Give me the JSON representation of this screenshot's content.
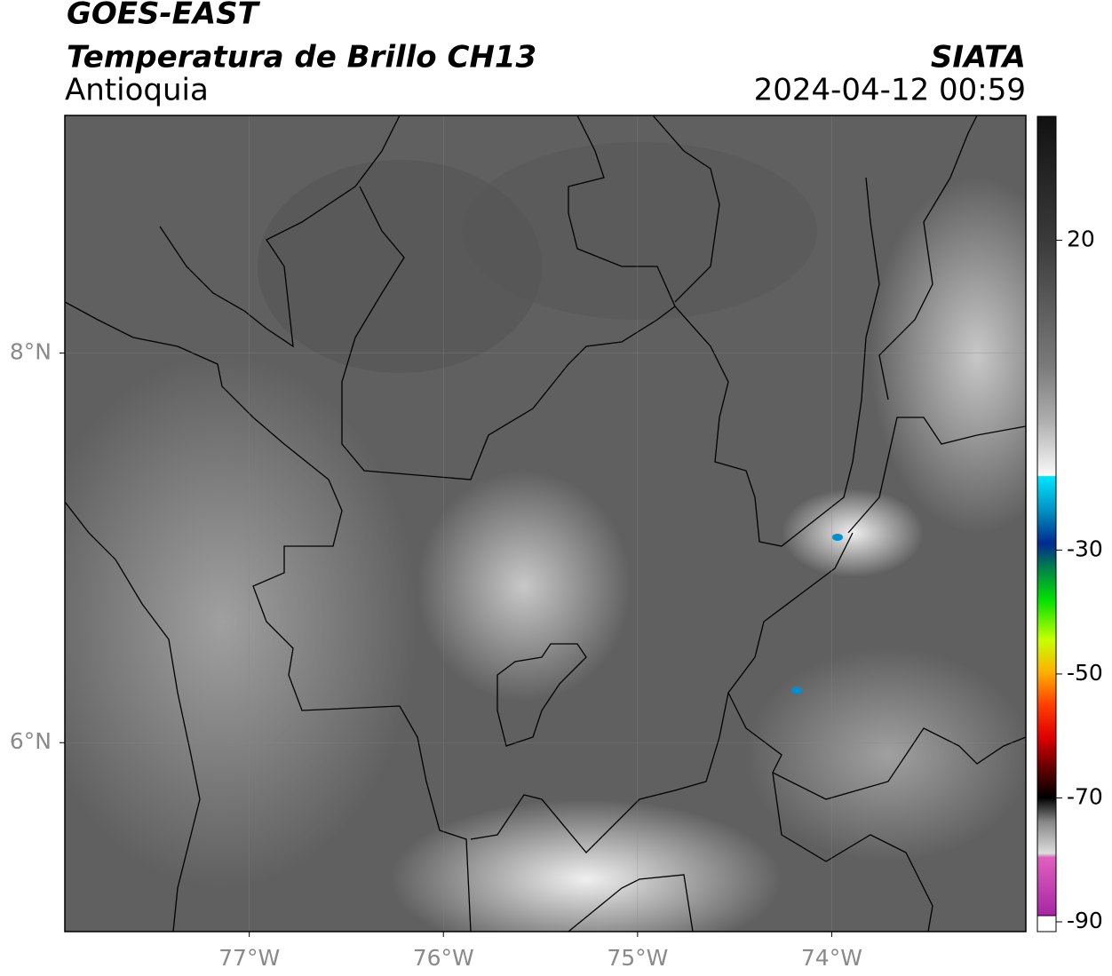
{
  "header": {
    "title": "GOES-EAST",
    "subtitle": "Temperatura de Brillo CH13",
    "region": "Antioquia",
    "source": "SIATA",
    "timestamp": "2024-04-12 00:59"
  },
  "map": {
    "xlim": [
      -77.95,
      -73.0
    ],
    "ylim": [
      5.03,
      9.22
    ],
    "xticks": [
      {
        "value": -77,
        "label": "77°W"
      },
      {
        "value": -76,
        "label": "76°W"
      },
      {
        "value": -75,
        "label": "75°W"
      },
      {
        "value": -74,
        "label": "74°W"
      }
    ],
    "yticks": [
      {
        "value": 6,
        "label": "6°N"
      },
      {
        "value": 8,
        "label": "8°N"
      }
    ],
    "grid": true
  },
  "colorbar": {
    "lim": [
      -90,
      40
    ],
    "ticks": [
      20,
      -30,
      -50,
      -70,
      -90
    ]
  }
}
